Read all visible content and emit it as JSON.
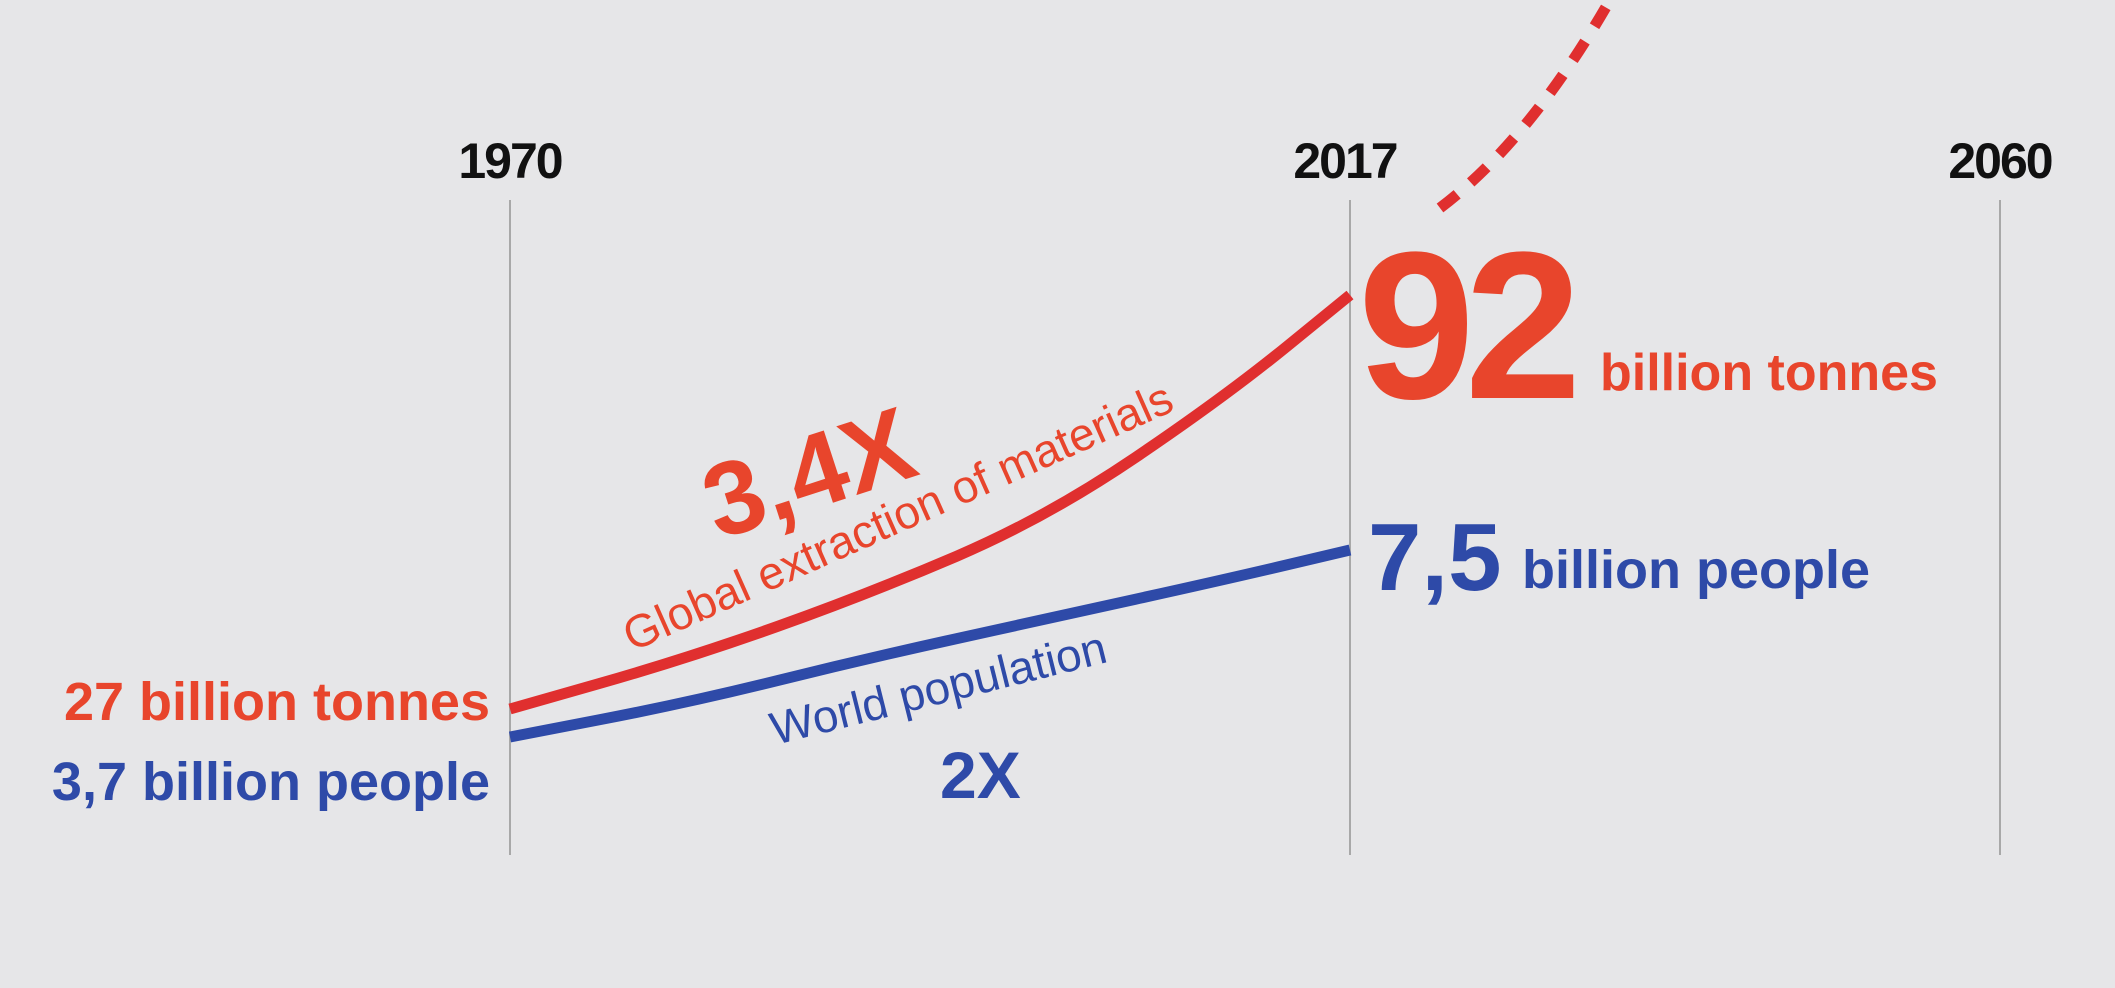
{
  "colors": {
    "background": "#e6e6e8",
    "materials": "#e8452c",
    "materials_line": "#e02f2f",
    "population": "#2e4aa8",
    "year_text": "#111111",
    "gridline": "#a8a8a8"
  },
  "chart_data": {
    "type": "line",
    "x_ticks": [
      "1970",
      "2017",
      "2060"
    ],
    "grid": "vertical lines at tick years",
    "series": [
      {
        "key": "materials",
        "name": "Global extraction of materials",
        "points": [
          {
            "x": 1970,
            "y": 27
          },
          {
            "x": 1980,
            "y": 35
          },
          {
            "x": 1990,
            "y": 45
          },
          {
            "x": 2000,
            "y": 57
          },
          {
            "x": 2010,
            "y": 76
          },
          {
            "x": 2017,
            "y": 92
          }
        ],
        "projection": {
          "style": "dashed",
          "points": [
            {
              "x": 2017,
              "y": 92
            },
            {
              "x": 2033,
              "y": 140
            }
          ]
        },
        "start_value_label": "27 billion tonnes",
        "end_value_number": "92",
        "end_value_unit": "billion tonnes",
        "multiplier": "3,4X"
      },
      {
        "key": "population",
        "name": "World population",
        "points": [
          {
            "x": 1970,
            "y": 3.7
          },
          {
            "x": 1980,
            "y": 4.4
          },
          {
            "x": 1990,
            "y": 5.3
          },
          {
            "x": 2000,
            "y": 6.1
          },
          {
            "x": 2010,
            "y": 6.9
          },
          {
            "x": 2017,
            "y": 7.5
          }
        ],
        "start_value_label": "3,7 billion people",
        "end_value_number": "7,5",
        "end_value_unit": "billion people",
        "multiplier": "2X"
      }
    ]
  }
}
